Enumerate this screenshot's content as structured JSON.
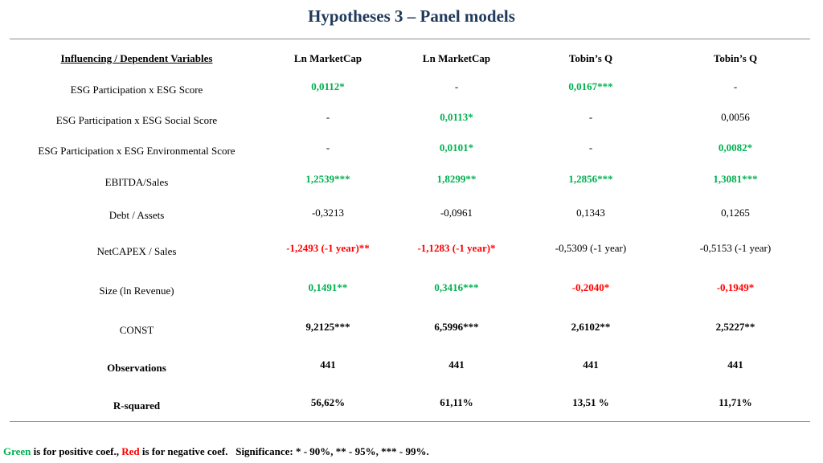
{
  "title": "Hypotheses 3 – Panel models",
  "colors": {
    "title": "#1F3A5A",
    "positive": "#00B050",
    "negative": "#FF0000"
  },
  "table": {
    "headers": [
      "Influencing / Dependent Variables",
      "Ln MarketCap",
      "Ln MarketCap",
      "Tobin’s Q",
      "Tobin’s Q"
    ],
    "rows": [
      {
        "label": "ESG Participation x ESG Score",
        "values": [
          "0,0112*",
          "-",
          "0,0167***",
          "-"
        ]
      },
      {
        "label": "ESG Participation x ESG Social Score",
        "values": [
          "-",
          "0,0113*",
          "-",
          "0,0056"
        ]
      },
      {
        "label": "ESG Participation x ESG Environmental Score",
        "values": [
          "-",
          "0,0101*",
          "-",
          "0,0082*"
        ]
      },
      {
        "label": "EBITDA/Sales",
        "values": [
          "1,2539***",
          "1,8299**",
          "1,2856***",
          "1,3081***"
        ]
      },
      {
        "label": "Debt / Assets",
        "values": [
          "-0,3213",
          "-0,0961",
          "0,1343",
          "0,1265"
        ]
      },
      {
        "label": "NetCAPEX / Sales",
        "values": [
          "-1,2493 (-1 year)**",
          "-1,1283 (-1 year)*",
          "-0,5309 (-1 year)",
          "-0,5153 (-1 year)"
        ]
      },
      {
        "label": "Size (ln Revenue)",
        "values": [
          "0,1491**",
          "0,3416***",
          "-0,2040*",
          "-0,1949*"
        ]
      },
      {
        "label": "CONST",
        "values": [
          "9,2125***",
          "6,5996***",
          "2,6102**",
          "2,5227**"
        ]
      },
      {
        "label": "Observations",
        "values": [
          "441",
          "441",
          "441",
          "441"
        ]
      },
      {
        "label": "R-squared",
        "values": [
          "56,62%",
          "61,11%",
          "13,51 %",
          "11,71%"
        ]
      }
    ]
  },
  "footer": {
    "green_word": "Green",
    "green_rest": " is for positive coef., ",
    "red_word": "Red",
    "red_rest": " is for negative coef.",
    "significance": "Significance: * - 90%, ** - 95%, *** - 99%."
  }
}
